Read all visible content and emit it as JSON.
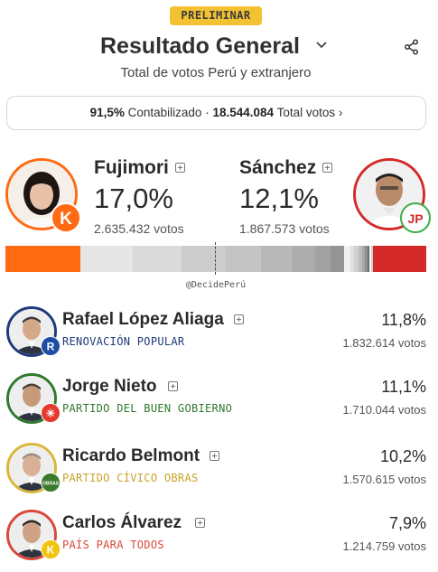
{
  "badge": "PRELIMINAR",
  "header": {
    "title": "Resultado General",
    "subtitle": "Total de votos Perú y extranjero"
  },
  "stats": {
    "counted_pct": "91,5%",
    "counted_label": "Contabilizado",
    "separator": "·",
    "total_votes": "18.544.084",
    "total_label": "Total votos",
    "arrow": "›"
  },
  "leaders": [
    {
      "name": "Fujimori",
      "pct": "17,0%",
      "votes": "2.635.432 votos",
      "color": "#ff6a13",
      "logo_letter": "K"
    },
    {
      "name": "Sánchez",
      "pct": "12,1%",
      "votes": "1.867.573 votos",
      "color": "#d42a2a",
      "logo_letter": "JP"
    }
  ],
  "results_bar": [
    {
      "share": 17.0,
      "color": "#ff6a13"
    },
    {
      "share": 11.8,
      "color": "#e6e6e6"
    },
    {
      "share": 11.1,
      "color": "#dadada"
    },
    {
      "share": 10.2,
      "color": "#cccccc"
    },
    {
      "share": 7.9,
      "color": "#c4c4c4"
    },
    {
      "share": 7.0,
      "color": "#b8b8b8"
    },
    {
      "share": 5.2,
      "color": "#adadad"
    },
    {
      "share": 3.6,
      "color": "#a2a2a2"
    },
    {
      "share": 3.0,
      "color": "#959595"
    },
    {
      "share": 1.4,
      "color": "#f0f0f0"
    },
    {
      "share": 1.0,
      "color": "#e0e0e0"
    },
    {
      "share": 0.9,
      "color": "#d0d0d0"
    },
    {
      "share": 0.8,
      "color": "#bdbdbd"
    },
    {
      "share": 0.7,
      "color": "#a8a8a8"
    },
    {
      "share": 0.6,
      "color": "#8f8f8f"
    },
    {
      "share": 0.5,
      "color": "#6f6f6f"
    },
    {
      "share": 0.4,
      "color": "#f5f5f5"
    },
    {
      "share": 0.3,
      "color": "#cfcfcf"
    },
    {
      "share": 12.1,
      "color": "#d42a2a"
    }
  ],
  "credit": "@DecidePerú",
  "candidates": [
    {
      "name": "Rafael López Aliaga",
      "party": "RENOVACIÓN POPULAR",
      "party_color": "#1e3a7a",
      "ring_color": "#1e3a7a",
      "pct": "11,8%",
      "votes": "1.832.614 votos",
      "logo_letter": "R",
      "logo_bg": "#1d4ea3"
    },
    {
      "name": "Jorge Nieto",
      "party": "PARTIDO DEL BUEN GOBIERNO",
      "party_color": "#2f7a2f",
      "ring_color": "#2f7a2f",
      "pct": "11,1%",
      "votes": "1.710.044 votos",
      "logo_letter": "☀",
      "logo_bg": "#e23b2e"
    },
    {
      "name": "Ricardo Belmont",
      "party": "PARTIDO CÍVICO OBRAS",
      "party_color": "#c9a227",
      "ring_color": "#d9b63a",
      "pct": "10,2%",
      "votes": "1.570.615 votos",
      "logo_letter": "OBRAS",
      "logo_bg": "#3a7a2a"
    },
    {
      "name": "Carlos Álvarez",
      "party": "PAÍS PARA TODOS",
      "party_color": "#d9483a",
      "ring_color": "#d9483a",
      "pct": "7,9%",
      "votes": "1.214.759 votos",
      "logo_letter": "K",
      "logo_bg": "#f1c40f"
    }
  ]
}
